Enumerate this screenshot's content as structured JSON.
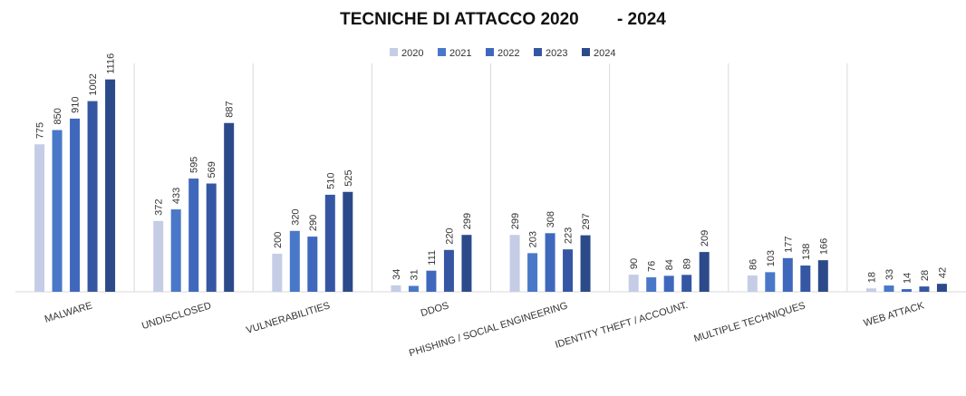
{
  "chart_data": {
    "type": "bar",
    "title": "TECNICHE DI ATTACCO 2020        - 2024",
    "categories": [
      "MALWARE",
      "UNDISCLOSED",
      "VULNERABILITIES",
      "DDOS",
      "PHISHING / SOCIAL ENGINEERING",
      "IDENTITY THEFT / ACCOUNT",
      "MULTIPLE TECHNIQUES",
      "WEB ATTACK"
    ],
    "annotations": [
      "..."
    ],
    "series": [
      {
        "name": "2020",
        "color": "#c5cde6",
        "values": [
          775,
          372,
          200,
          34,
          299,
          90,
          86,
          18
        ]
      },
      {
        "name": "2021",
        "color": "#4a78c9",
        "values": [
          850,
          433,
          320,
          31,
          203,
          76,
          103,
          33
        ]
      },
      {
        "name": "2022",
        "color": "#3f68bd",
        "values": [
          910,
          595,
          290,
          111,
          308,
          84,
          177,
          14
        ]
      },
      {
        "name": "2023",
        "color": "#3557a3",
        "values": [
          1002,
          569,
          510,
          220,
          223,
          89,
          138,
          28
        ]
      },
      {
        "name": "2024",
        "color": "#2c4a8a",
        "values": [
          1116,
          887,
          525,
          299,
          297,
          209,
          166,
          42
        ]
      }
    ],
    "ylim": [
      0,
      1200
    ]
  }
}
